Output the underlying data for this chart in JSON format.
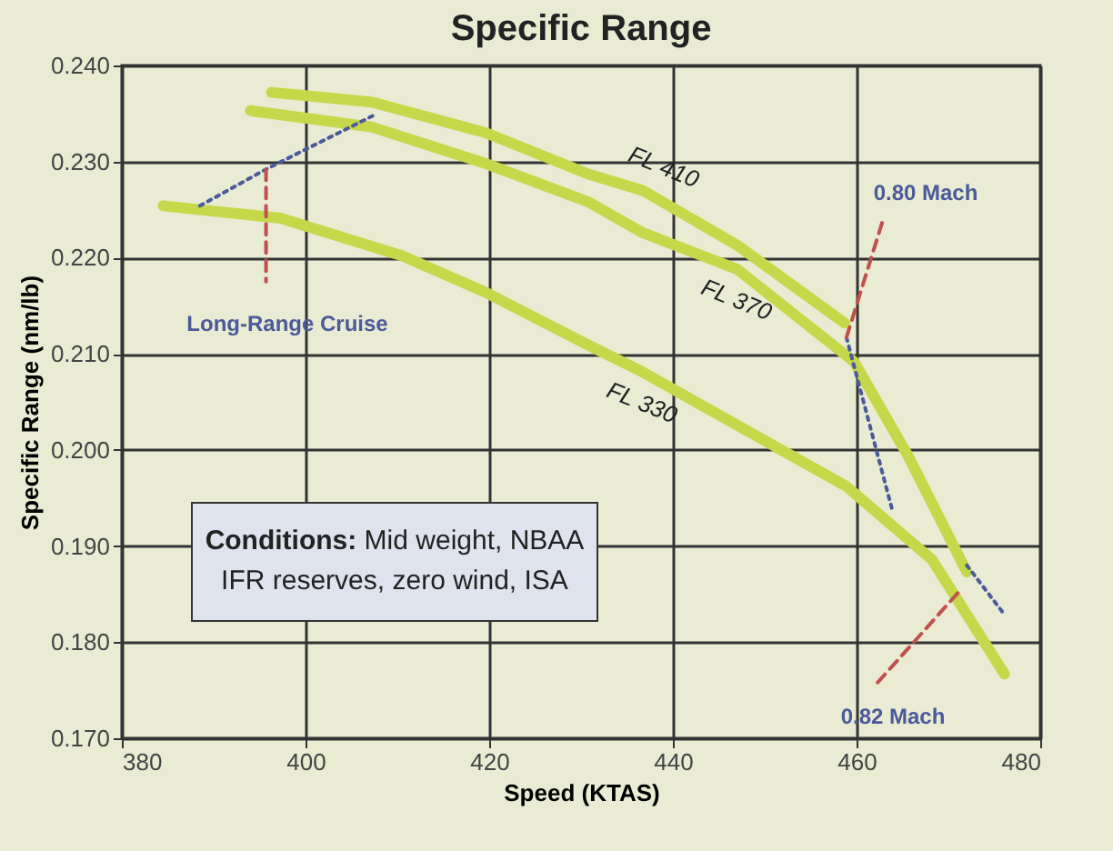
{
  "chart_data": {
    "type": "line",
    "title": "Specific Range",
    "xlabel": "Speed (KTAS)",
    "ylabel": "Specific Range (nm/lb)",
    "xlim": [
      380,
      480
    ],
    "xticks": [
      380,
      400,
      420,
      440,
      460,
      480
    ],
    "ylim": [
      0.17,
      0.24
    ],
    "yticks": [
      {
        "value": 0.17,
        "label": "0.170"
      },
      {
        "value": 0.18,
        "label": "0.180"
      },
      {
        "value": 0.19,
        "label": "0.190"
      },
      {
        "value": 0.2,
        "label": "0.200"
      },
      {
        "value": 0.21,
        "label": "0.210"
      },
      {
        "value": 0.22,
        "label": "0.220"
      },
      {
        "value": 0.23,
        "label": "0.230"
      },
      {
        "value": 0.24,
        "label": "0.240"
      }
    ],
    "grid": true,
    "marker": "none",
    "series": [
      {
        "name": "FL 410",
        "color": "#c5d84a",
        "line_style": "solid",
        "x": [
          396.3,
          407.2,
          419.6,
          430.8,
          436.7,
          447,
          458.7
        ],
        "values": [
          0.2372,
          0.2362,
          0.233,
          0.2287,
          0.227,
          0.2213,
          0.2132
        ]
      },
      {
        "name": "FL 370",
        "color": "#c5d84a",
        "line_style": "solid",
        "x": [
          394,
          407.2,
          419.6,
          430.8,
          436.7,
          447,
          459.7,
          465.6,
          472
        ],
        "values": [
          0.2353,
          0.2336,
          0.2298,
          0.2258,
          0.2226,
          0.2188,
          0.2092,
          0.1994,
          0.1873
        ]
      },
      {
        "name": "FL 330",
        "color": "#c5d84a",
        "line_style": "solid",
        "x": [
          384.5,
          397.3,
          410.5,
          419.6,
          430.8,
          436.7,
          458.9,
          468.2,
          476.1
        ],
        "values": [
          0.2254,
          0.2241,
          0.2202,
          0.2164,
          0.2109,
          0.2081,
          0.1962,
          0.1886,
          0.1767
        ]
      },
      {
        "color": "#4a5a9a",
        "line_style": "dotted",
        "x": [
          388.5,
          395.7,
          407.6
        ],
        "values": [
          0.2254,
          0.2292,
          0.2349
        ]
      },
      {
        "color": "#c0504d",
        "line_style": "dashed",
        "x": [
          395.7,
          395.7
        ],
        "values": [
          0.2292,
          0.2175
        ]
      },
      {
        "color": "#4a5a9a",
        "line_style": "dotted",
        "x": [
          458.9,
          463.9
        ],
        "values": [
          0.2117,
          0.1937
        ]
      },
      {
        "color": "#c0504d",
        "line_style": "dashed",
        "x": [
          458.9,
          462.9
        ],
        "values": [
          0.2117,
          0.224
        ]
      },
      {
        "color": "#4a5a9a",
        "line_style": "dotted",
        "x": [
          472,
          476
        ],
        "values": [
          0.188,
          0.183
        ]
      },
      {
        "color": "#c0504d",
        "line_style": "dashed",
        "x": [
          471.1,
          462.3
        ],
        "values": [
          0.1852,
          0.1758
        ]
      }
    ],
    "annotations": [
      "Long-Range Cruise",
      "0.80 Mach",
      "0.82 Mach",
      "Conditions: Mid weight, NBAA IFR reserves, zero wind, ISA"
    ]
  }
}
